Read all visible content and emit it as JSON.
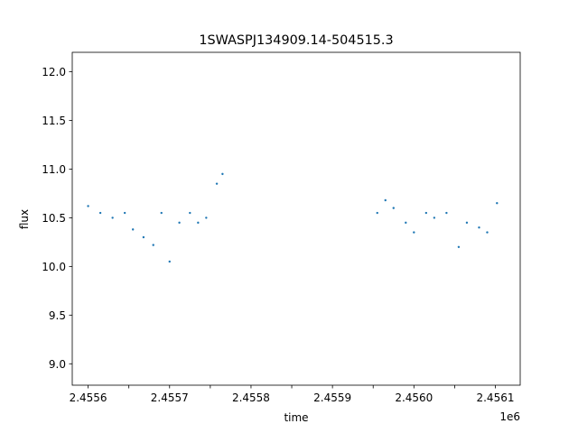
{
  "chart_data": {
    "type": "scatter",
    "title": "1SWASPJ134909.14-504515.3",
    "xlabel": "time",
    "ylabel": "flux",
    "x_offset_label": "1e6",
    "xlim": [
      2455580.5,
      2456130.5
    ],
    "ylim": [
      8.78,
      12.2
    ],
    "x_ticks": [
      2455600,
      2455650,
      2455700,
      2455750,
      2455800,
      2455850,
      2455900,
      2455950,
      2456000,
      2456050,
      2456100
    ],
    "x_tick_labels": [
      "2.4556",
      "",
      "2.4557",
      "",
      "2.4558",
      "",
      "2.4559",
      "",
      "2.4560",
      "",
      "2.4561"
    ],
    "y_ticks": [
      9.0,
      9.5,
      10.0,
      10.5,
      11.0,
      11.5,
      12.0
    ],
    "y_tick_labels": [
      "9.0",
      "9.5",
      "10.0",
      "10.5",
      "11.0",
      "11.5",
      "12.0"
    ],
    "grid": false,
    "marker_color": "#1f77b4",
    "series": [
      {
        "name": "",
        "x": [
          2455600,
          2455615,
          2455630,
          2455645,
          2455655,
          2455668,
          2455680,
          2455690,
          2455700,
          2455712,
          2455725,
          2455735,
          2455745,
          2455758,
          2455765,
          2455955,
          2455965,
          2455975,
          2455990,
          2456000,
          2456015,
          2456025,
          2456040,
          2456055,
          2456065,
          2456080,
          2456090,
          2456102
        ],
        "y": [
          10.62,
          10.55,
          10.5,
          10.55,
          10.38,
          10.3,
          10.22,
          10.55,
          10.05,
          10.45,
          10.55,
          10.45,
          10.5,
          10.85,
          10.95,
          10.55,
          10.68,
          10.6,
          10.45,
          10.35,
          10.55,
          10.5,
          10.55,
          10.2,
          10.45,
          10.4,
          10.35,
          10.65
        ]
      }
    ]
  }
}
